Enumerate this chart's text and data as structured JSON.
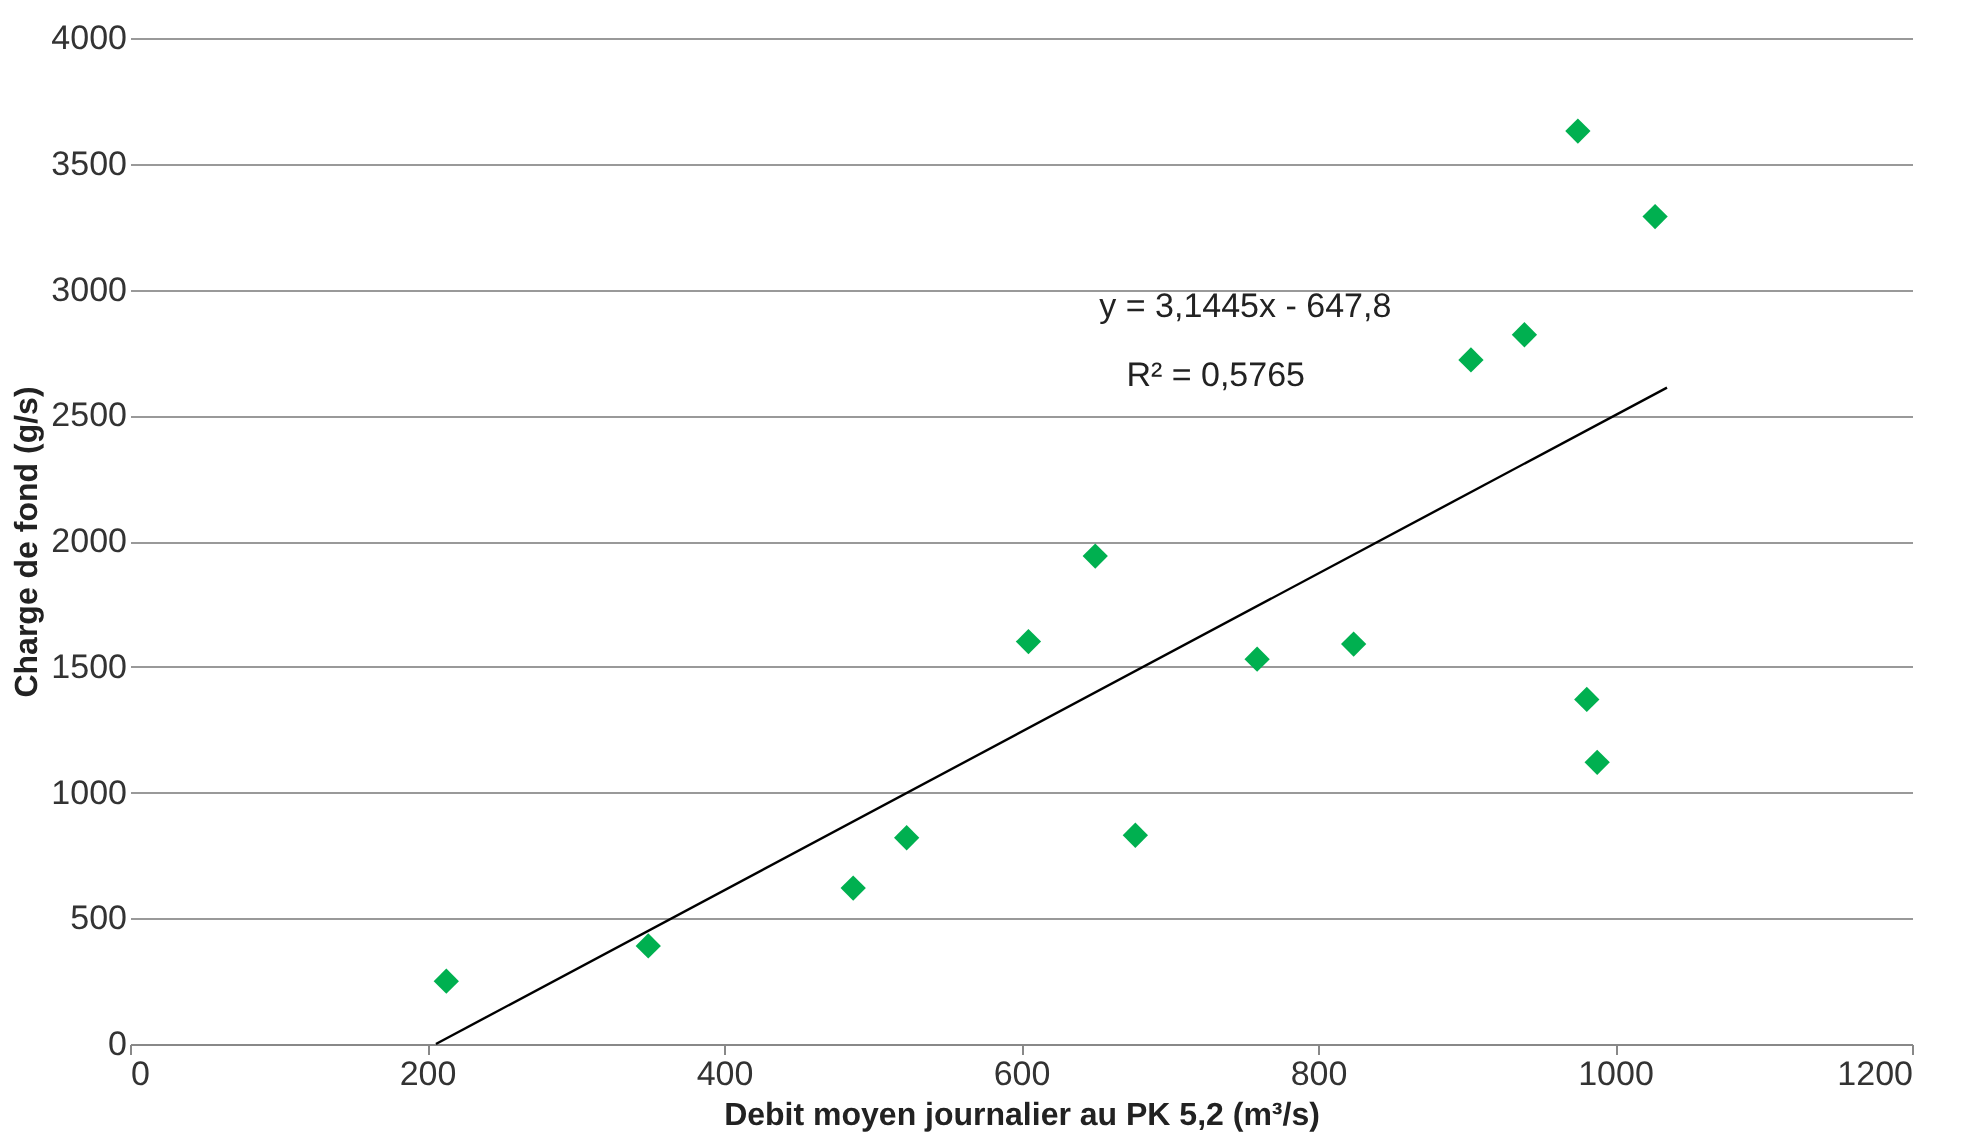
{
  "chart_data": {
    "type": "scatter",
    "xlabel": "Debit moyen journalier au PK 5,2 (m³/s)",
    "ylabel": "Charge de fond (g/s)",
    "xlim": [
      0,
      1200
    ],
    "xticks": [
      0,
      200,
      400,
      600,
      800,
      1000,
      1200
    ],
    "ylim": [
      0,
      4000
    ],
    "yticks": [
      0,
      500,
      1000,
      1500,
      2000,
      2500,
      3000,
      3500,
      4000
    ],
    "grid": "y",
    "marker": "diamond",
    "annotations": [
      "y = 3,1445x - 647,8",
      "R² = 0,5765"
    ],
    "series": [
      {
        "color": "#00b050",
        "x": [
          213,
          349,
          487,
          523,
          605,
          650,
          677,
          759,
          824,
          903,
          939,
          975,
          1027,
          981,
          988
        ],
        "values": [
          250,
          390,
          620,
          820,
          1600,
          1940,
          830,
          1530,
          1590,
          2720,
          2820,
          3630,
          3290,
          1370,
          1120
        ]
      },
      {
        "type": "line",
        "color": "#000000",
        "line_style": "solid",
        "marker": "none",
        "x": [
          206,
          1035
        ],
        "values": [
          0,
          2610
        ]
      }
    ]
  }
}
